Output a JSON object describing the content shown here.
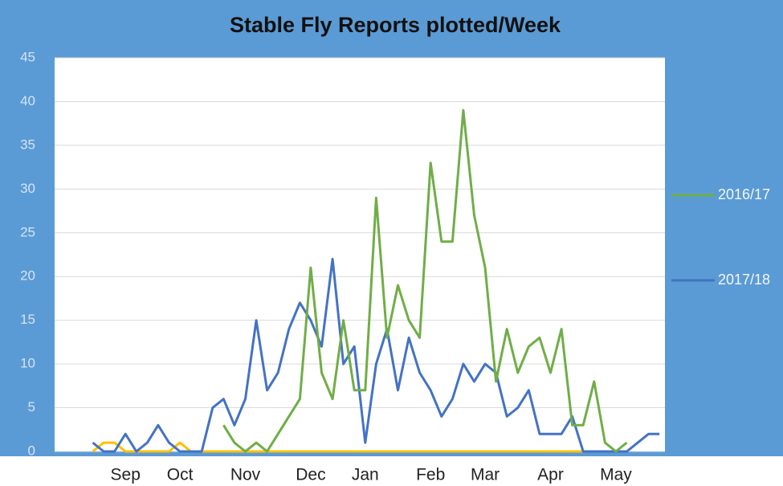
{
  "chart_data": {
    "type": "line",
    "title": "Stable Fly Reports plotted/Week",
    "categories": [
      null,
      null,
      null,
      null,
      null,
      null,
      "Sep",
      null,
      null,
      null,
      null,
      "Oct",
      null,
      null,
      null,
      null,
      null,
      "Nov",
      null,
      null,
      null,
      null,
      null,
      "Dec",
      null,
      null,
      null,
      null,
      "Jan",
      null,
      null,
      null,
      null,
      null,
      "Feb",
      null,
      null,
      null,
      null,
      "Mar",
      null,
      null,
      null,
      null,
      null,
      "Apr",
      null,
      null,
      null,
      null,
      null,
      "May",
      null,
      null,
      null,
      null
    ],
    "series": [
      {
        "name": "2016/17",
        "color": "#70ad47",
        "values": [
          null,
          null,
          null,
          null,
          null,
          null,
          null,
          null,
          null,
          null,
          null,
          null,
          null,
          null,
          null,
          3,
          1,
          0,
          1,
          0,
          2,
          4,
          6,
          21,
          9,
          6,
          15,
          7,
          7,
          29,
          13,
          19,
          15,
          13,
          33,
          24,
          24,
          39,
          27,
          21,
          8,
          14,
          9,
          12,
          13,
          9,
          14,
          3,
          3,
          8,
          1,
          0,
          1,
          null,
          null,
          null
        ]
      },
      {
        "name": "2017/18",
        "color": "#4472c4",
        "values": [
          null,
          null,
          null,
          1,
          0,
          0,
          2,
          0,
          1,
          3,
          1,
          0,
          0,
          0,
          5,
          6,
          3,
          6,
          15,
          7,
          9,
          14,
          17,
          15,
          12,
          22,
          10,
          12,
          1,
          10,
          14,
          7,
          13,
          9,
          7,
          4,
          6,
          10,
          8,
          10,
          9,
          4,
          5,
          7,
          2,
          2,
          2,
          4,
          0,
          0,
          0,
          0,
          0,
          1,
          2,
          2
        ]
      },
      {
        "color": "#ffc000",
        "values": [
          null,
          null,
          null,
          0,
          1,
          1,
          0,
          0,
          0,
          0,
          0,
          1,
          0,
          0,
          0,
          0,
          0,
          0,
          0,
          0,
          0,
          0,
          0,
          0,
          0,
          0,
          0,
          0,
          0,
          0,
          0,
          0,
          0,
          0,
          0,
          0,
          0,
          0,
          0,
          0,
          0,
          0,
          0,
          0,
          0,
          0,
          0,
          0,
          0,
          0,
          0,
          0,
          0,
          null,
          null,
          null
        ]
      }
    ],
    "ylim": [
      0,
      45
    ],
    "yticks": [
      0,
      5,
      10,
      15,
      20,
      25,
      30,
      35,
      40,
      45
    ],
    "grid": true,
    "legend": "right"
  }
}
